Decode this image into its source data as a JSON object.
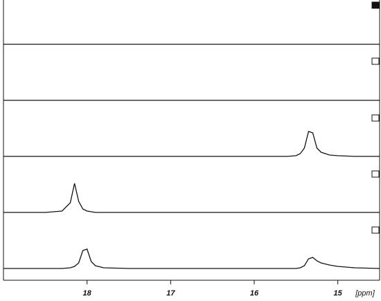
{
  "chart_data": {
    "type": "line",
    "x_label": "[ppm]",
    "xlim": [
      19.0,
      14.5
    ],
    "xticks": [
      18,
      17,
      16,
      15
    ],
    "x": [
      19.0,
      18.5,
      18.3,
      18.2,
      18.15,
      18.1,
      18.05,
      18.0,
      17.95,
      17.9,
      17.8,
      17.5,
      17.0,
      16.5,
      16.0,
      15.6,
      15.5,
      15.45,
      15.4,
      15.35,
      15.3,
      15.25,
      15.2,
      15.1,
      15.0,
      14.8,
      14.5
    ],
    "series": [
      {
        "color": "#111111",
        "values": [
          0,
          0,
          0,
          0,
          0,
          0,
          0,
          0,
          0,
          0,
          0,
          0,
          0,
          0,
          0,
          0,
          0,
          0,
          0,
          0,
          0,
          0,
          0,
          0,
          0,
          0,
          0
        ]
      },
      {
        "color": "#111111",
        "values": [
          0,
          0,
          0,
          0,
          0,
          0,
          0,
          0,
          0,
          0,
          0,
          0,
          0,
          0,
          0,
          0,
          0,
          0,
          0,
          0,
          0,
          0,
          0,
          0,
          0,
          0,
          0
        ]
      },
      {
        "color": "#111111",
        "values": [
          0,
          0,
          0,
          0,
          0,
          0,
          0,
          0,
          0,
          0,
          0,
          0,
          0,
          0,
          0,
          0,
          1,
          4,
          12,
          36,
          34,
          12,
          6,
          2,
          1,
          0,
          0
        ]
      },
      {
        "color": "#111111",
        "values": [
          0,
          0,
          2,
          14,
          42,
          16,
          5,
          2,
          1,
          0,
          0,
          0,
          0,
          0,
          0,
          0,
          0,
          0,
          0,
          0,
          0,
          0,
          0,
          0,
          0,
          0,
          0
        ]
      },
      {
        "color": "#111111",
        "values": [
          0,
          0,
          0,
          1,
          3,
          8,
          26,
          28,
          10,
          4,
          1,
          0,
          0,
          0,
          0,
          0,
          0,
          1,
          4,
          14,
          16,
          11,
          8,
          5,
          3,
          1,
          0
        ]
      }
    ]
  }
}
